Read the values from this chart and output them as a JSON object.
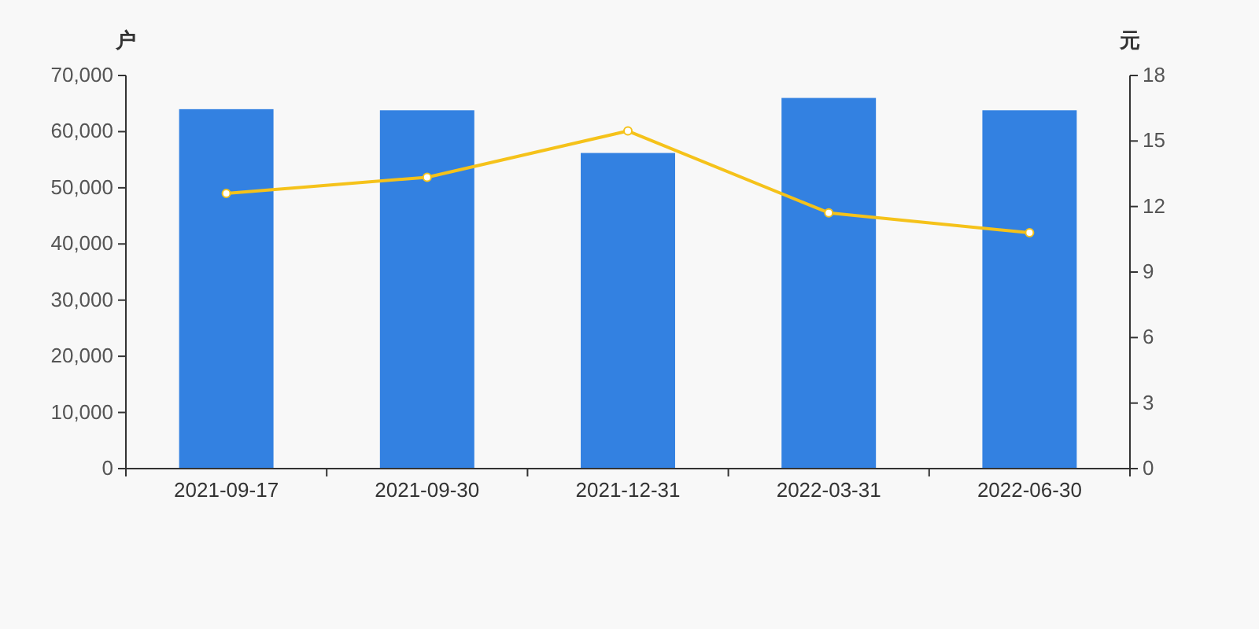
{
  "chart_data": {
    "type": "bar",
    "categories": [
      "2021-09-17",
      "2021-09-30",
      "2021-12-31",
      "2022-03-31",
      "2022-06-30"
    ],
    "ylabel": "户",
    "y2label": "元",
    "ylim": [
      0,
      70000
    ],
    "yticks": [
      0,
      {
        "value": 10000,
        "label": "10,000"
      },
      {
        "value": 20000,
        "label": "20,000"
      },
      {
        "value": 30000,
        "label": "30,000"
      },
      {
        "value": 40000,
        "label": "40,000"
      },
      {
        "value": 50000,
        "label": "50,000"
      },
      {
        "value": 60000,
        "label": "60,000"
      },
      {
        "value": 70000,
        "label": "70,000"
      }
    ],
    "y2lim": [
      0,
      18
    ],
    "y2ticks": [
      0,
      3,
      6,
      9,
      12,
      15,
      18
    ],
    "grid": false,
    "series": [
      {
        "color": "#3381e1",
        "values": [
          64000,
          63800,
          56200,
          66000,
          63800
        ]
      },
      {
        "type": "line",
        "axis": "y2",
        "color": "#f5c21a",
        "marker": "circle",
        "values": [
          12.6,
          13.34,
          15.46,
          11.71,
          10.8
        ]
      }
    ]
  }
}
